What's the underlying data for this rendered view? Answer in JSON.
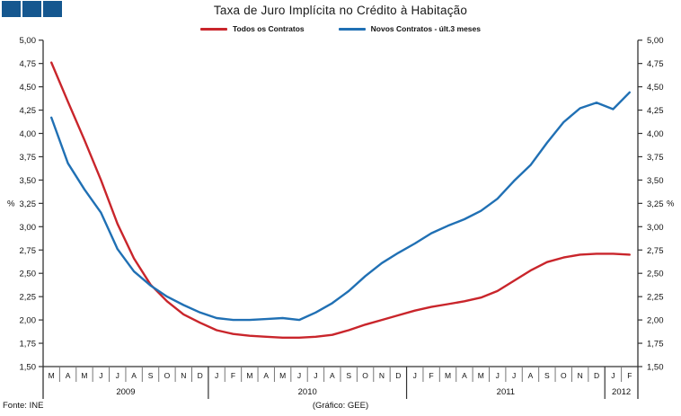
{
  "header": {
    "title": "Taxa de Juro Implícita no Crédito à Habitação"
  },
  "footer": {
    "source": "Fonte: INE",
    "credit": "(Gráfico: GEE)"
  },
  "logo": {
    "color": "#15578F",
    "squares": 3
  },
  "chart_data": {
    "type": "line",
    "title": "Taxa de Juro Implícita no Crédito à Habitação",
    "y_unit": "%",
    "ylim": [
      1.5,
      5.0
    ],
    "y_tick_step": 0.25,
    "y_ticks": [
      "5,00",
      "4,75",
      "4,50",
      "4,25",
      "4,00",
      "3,75",
      "3,50",
      "3,25",
      "3,00",
      "2,75",
      "2,50",
      "2,25",
      "2,00",
      "1,75",
      "1,50"
    ],
    "x_months": [
      "M",
      "A",
      "M",
      "J",
      "J",
      "A",
      "S",
      "O",
      "N",
      "D",
      "J",
      "F",
      "M",
      "A",
      "M",
      "J",
      "J",
      "A",
      "S",
      "O",
      "N",
      "D",
      "J",
      "F",
      "M",
      "A",
      "M",
      "J",
      "J",
      "A",
      "S",
      "O",
      "N",
      "D",
      "J",
      "F"
    ],
    "years": [
      {
        "label": "2009",
        "span": 10
      },
      {
        "label": "2010",
        "span": 12
      },
      {
        "label": "2011",
        "span": 12
      },
      {
        "label": "2012",
        "span": 2
      }
    ],
    "legend_position": "top",
    "grid": false,
    "series": [
      {
        "name": "Todos os Contratos",
        "color": "#C9252B",
        "values": [
          4.76,
          4.34,
          3.93,
          3.5,
          3.03,
          2.66,
          2.38,
          2.2,
          2.06,
          1.97,
          1.89,
          1.85,
          1.83,
          1.82,
          1.81,
          1.81,
          1.82,
          1.84,
          1.89,
          1.95,
          2.0,
          2.05,
          2.1,
          2.14,
          2.17,
          2.2,
          2.24,
          2.31,
          2.42,
          2.53,
          2.62,
          2.67,
          2.7,
          2.71,
          2.71,
          2.7
        ]
      },
      {
        "name": "Novos Contratos - últ.3 meses",
        "color": "#2070B4",
        "values": [
          4.17,
          3.68,
          3.4,
          3.15,
          2.76,
          2.52,
          2.37,
          2.25,
          2.16,
          2.08,
          2.02,
          2.0,
          2.0,
          2.01,
          2.02,
          2.0,
          2.08,
          2.18,
          2.31,
          2.47,
          2.61,
          2.72,
          2.82,
          2.93,
          3.01,
          3.08,
          3.17,
          3.3,
          3.49,
          3.66,
          3.9,
          4.12,
          4.27,
          4.33,
          4.26,
          4.44
        ]
      }
    ]
  }
}
